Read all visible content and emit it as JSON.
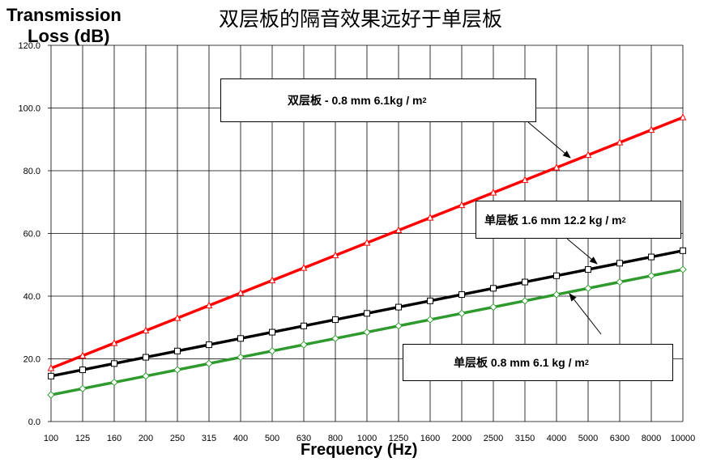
{
  "title": "双层板的隔音效果远好于单层板",
  "chart_data": {
    "type": "line",
    "ylabel_line1": "Transmission",
    "ylabel_line2": "Loss (dB)",
    "xlabel": "Frequency (Hz)",
    "categories": [
      "100",
      "125",
      "160",
      "200",
      "250",
      "315",
      "400",
      "500",
      "630",
      "800",
      "1000",
      "1250",
      "1600",
      "2000",
      "2500",
      "3150",
      "4000",
      "5000",
      "6300",
      "8000",
      "10000"
    ],
    "ylim": [
      0,
      120
    ],
    "yticks": [
      "0.0",
      "20.0",
      "40.0",
      "60.0",
      "80.0",
      "100.0",
      "120.0"
    ],
    "grid": true,
    "series": [
      {
        "id": "double",
        "color": "#ff0000",
        "marker": "triangle",
        "values": [
          17,
          21,
          25,
          29,
          33,
          37,
          41,
          45,
          49,
          53,
          57,
          61,
          65,
          69,
          73,
          77,
          81,
          85,
          89,
          93,
          97
        ]
      },
      {
        "id": "single16",
        "color": "#000000",
        "marker": "square",
        "values": [
          14.5,
          16.5,
          18.5,
          20.5,
          22.5,
          24.5,
          26.5,
          28.5,
          30.5,
          32.5,
          34.5,
          36.5,
          38.5,
          40.5,
          42.5,
          44.5,
          46.5,
          48.5,
          50.5,
          52.5,
          54.5
        ]
      },
      {
        "id": "single08",
        "color": "#2e9a2e",
        "marker": "diamond",
        "values": [
          8.5,
          10.5,
          12.5,
          14.5,
          16.5,
          18.5,
          20.5,
          22.5,
          24.5,
          26.5,
          28.5,
          30.5,
          32.5,
          34.5,
          36.5,
          38.5,
          40.5,
          42.5,
          44.5,
          46.5,
          48.5
        ]
      }
    ],
    "annotations": {
      "double": {
        "prefix": "双层板 -  0.8 mm 6.1kg / m",
        "sup": "2"
      },
      "single16": {
        "prefix": "单层板 1.6 mm 12.2 kg / m",
        "sup": "2"
      },
      "single08": {
        "prefix": "单层板 0.8 mm 6.1 kg / m",
        "sup": "2"
      }
    }
  }
}
